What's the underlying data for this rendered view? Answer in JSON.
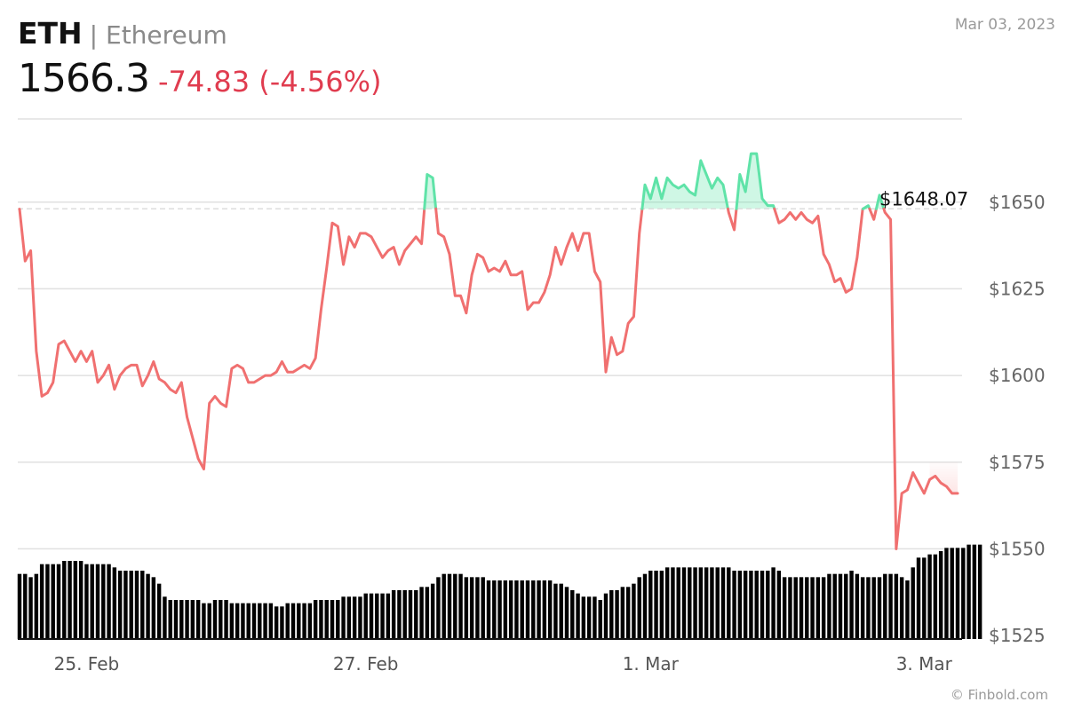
{
  "header": {
    "symbol": "ETH",
    "name": "| Ethereum",
    "price": "1566.3",
    "change": "-74.83 (-4.56%)",
    "date": "Mar 03, 2023"
  },
  "footer": {
    "credit": "© Finbold.com"
  },
  "colors": {
    "up": "#5fe3a8",
    "down": "#f07070",
    "volume": "#000000",
    "grid": "#e0e0e0",
    "change_text": "#e03c4f"
  },
  "chart_data": {
    "type": "line",
    "title": "",
    "xlabel": "",
    "ylabel": "",
    "ylim": [
      1524,
      1674
    ],
    "y_ticks": [
      "$1525",
      "$1550",
      "$1575",
      "$1600",
      "$1625",
      "$1650"
    ],
    "y_tick_values": [
      1525,
      1550,
      1575,
      1600,
      1625,
      1650
    ],
    "x_ticks": [
      "25. Feb",
      "27. Feb",
      "1. Mar",
      "3. Mar"
    ],
    "reference_line": {
      "value": 1648.07,
      "label": "$1648.07"
    },
    "grid": true,
    "series": [
      {
        "values": [
          1648,
          1633,
          1636,
          1607,
          1594,
          1595,
          1598,
          1609,
          1610,
          1607,
          1604,
          1607,
          1604,
          1607,
          1598,
          1600,
          1603,
          1596,
          1600,
          1602,
          1603,
          1603,
          1597,
          1600,
          1604,
          1599,
          1598,
          1596,
          1595,
          1598,
          1588,
          1582,
          1576,
          1573,
          1592,
          1594,
          1592,
          1591,
          1602,
          1603,
          1602,
          1598,
          1598,
          1599,
          1600,
          1600,
          1601,
          1604,
          1601,
          1601,
          1602,
          1603,
          1602,
          1605,
          1619,
          1631,
          1644,
          1643,
          1632,
          1640,
          1637,
          1641,
          1641,
          1640,
          1637,
          1634,
          1636,
          1637,
          1632,
          1636,
          1638,
          1640,
          1638,
          1658,
          1657,
          1641,
          1640,
          1635,
          1623,
          1623,
          1618,
          1629,
          1635,
          1634,
          1630,
          1631,
          1630,
          1633,
          1629,
          1629,
          1630,
          1619,
          1621,
          1621,
          1624,
          1629,
          1637,
          1632,
          1637,
          1641,
          1636,
          1641,
          1641,
          1630,
          1627,
          1601,
          1611,
          1606,
          1607,
          1615,
          1617,
          1641,
          1655,
          1651,
          1657,
          1651,
          1657,
          1655,
          1654,
          1655,
          1653,
          1652,
          1662,
          1658,
          1654,
          1657,
          1655,
          1647,
          1642,
          1658,
          1653,
          1664,
          1664,
          1651,
          1649,
          1649,
          1644,
          1645,
          1647,
          1645,
          1647,
          1645,
          1644,
          1646,
          1635,
          1632,
          1627,
          1628,
          1624,
          1625,
          1634,
          1648,
          1649,
          1645,
          1652,
          1647,
          1645,
          1550,
          1566,
          1567,
          1572,
          1569,
          1566,
          1570,
          1571,
          1569,
          1568,
          1566,
          1566
        ]
      }
    ],
    "volume": {
      "values": [
        20,
        20,
        19,
        20,
        23,
        23,
        23,
        23,
        24,
        24,
        24,
        24,
        23,
        23,
        23,
        23,
        23,
        22,
        21,
        21,
        21,
        21,
        21,
        20,
        19,
        17,
        13,
        12,
        12,
        12,
        12,
        12,
        12,
        11,
        11,
        12,
        12,
        12,
        11,
        11,
        11,
        11,
        11,
        11,
        11,
        11,
        10,
        10,
        11,
        11,
        11,
        11,
        11,
        12,
        12,
        12,
        12,
        12,
        13,
        13,
        13,
        13,
        14,
        14,
        14,
        14,
        14,
        15,
        15,
        15,
        15,
        15,
        16,
        16,
        17,
        19,
        20,
        20,
        20,
        20,
        19,
        19,
        19,
        19,
        18,
        18,
        18,
        18,
        18,
        18,
        18,
        18,
        18,
        18,
        18,
        18,
        17,
        17,
        16,
        15,
        14,
        13,
        13,
        13,
        12,
        14,
        15,
        15,
        16,
        16,
        17,
        19,
        20,
        21,
        21,
        21,
        22,
        22,
        22,
        22,
        22,
        22,
        22,
        22,
        22,
        22,
        22,
        22,
        21,
        21,
        21,
        21,
        21,
        21,
        21,
        22,
        21,
        19,
        19,
        19,
        19,
        19,
        19,
        19,
        19,
        20,
        20,
        20,
        20,
        21,
        20,
        19,
        19,
        19,
        19,
        20,
        20,
        20,
        19,
        18,
        22,
        25,
        25,
        26,
        26,
        27,
        28,
        28,
        28,
        28,
        29,
        29,
        29
      ],
      "max": 30
    }
  }
}
